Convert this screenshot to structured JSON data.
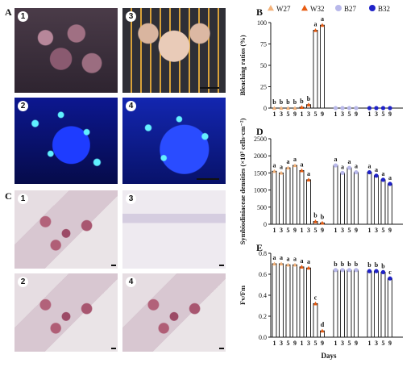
{
  "panels": {
    "A": "A",
    "B": "B",
    "C": "C",
    "D": "D",
    "E": "E"
  },
  "photo_badges": {
    "a1": "1",
    "a2": "2",
    "a3": "3",
    "a4": "4",
    "c1": "1",
    "c2": "2",
    "c3": "3",
    "c4": "4"
  },
  "legend": [
    {
      "label": "W27",
      "color": "#f3b27a",
      "marker": "triangle"
    },
    {
      "label": "W32",
      "color": "#e85c12",
      "marker": "triangle"
    },
    {
      "label": "B27",
      "color": "#b8b8ea",
      "marker": "circle"
    },
    {
      "label": "B32",
      "color": "#1f22c8",
      "marker": "circle"
    }
  ],
  "x_axis_title": "Days",
  "chart_data": [
    {
      "id": "B",
      "type": "bar",
      "ylabel": "Bleaching ratios (%)",
      "ylim": [
        0,
        100
      ],
      "yticks": [
        0,
        25,
        50,
        75,
        100
      ],
      "days": [
        "1",
        "3",
        "5",
        "9"
      ],
      "series": [
        {
          "name": "W27",
          "values": [
            0,
            0,
            0,
            0
          ],
          "letters": [
            "b",
            "b",
            "b",
            "b"
          ]
        },
        {
          "name": "W32",
          "values": [
            1,
            4,
            91,
            97
          ],
          "letters": [
            "b",
            "b",
            "a",
            "a"
          ]
        },
        {
          "name": "B27",
          "values": [
            0,
            0,
            0,
            0
          ],
          "letters": [
            "",
            "",
            "",
            ""
          ]
        },
        {
          "name": "B32",
          "values": [
            0,
            0,
            0,
            0
          ],
          "letters": [
            "",
            "",
            "",
            ""
          ]
        }
      ]
    },
    {
      "id": "D",
      "type": "bar",
      "ylabel": "Symbiodiniaceae densities (×10³ cells·cm⁻²)",
      "ylim": [
        0,
        2500
      ],
      "yticks": [
        0,
        500,
        1000,
        1500,
        2000,
        2500
      ],
      "days": [
        "1",
        "3",
        "5",
        "9"
      ],
      "series": [
        {
          "name": "W27",
          "values": [
            1550,
            1500,
            1650,
            1720
          ],
          "letters": [
            "a",
            "a",
            "a",
            "a"
          ]
        },
        {
          "name": "W32",
          "values": [
            1570,
            1300,
            80,
            40
          ],
          "letters": [
            "a",
            "a",
            "b",
            "b"
          ]
        },
        {
          "name": "B27",
          "values": [
            1720,
            1500,
            1650,
            1520
          ],
          "letters": [
            "a",
            "a",
            "a",
            "a"
          ]
        },
        {
          "name": "B32",
          "values": [
            1520,
            1420,
            1300,
            1180
          ],
          "letters": [
            "a",
            "a",
            "a",
            "a"
          ]
        }
      ]
    },
    {
      "id": "E",
      "type": "bar",
      "ylabel": "Fv/Fm",
      "ylim": [
        0,
        0.8
      ],
      "yticks": [
        0.0,
        0.2,
        0.4,
        0.6,
        0.8
      ],
      "days": [
        "1",
        "3",
        "5",
        "9"
      ],
      "series": [
        {
          "name": "W27",
          "values": [
            0.7,
            0.7,
            0.69,
            0.69
          ],
          "letters": [
            "a",
            "a",
            "a",
            "a"
          ]
        },
        {
          "name": "W32",
          "values": [
            0.67,
            0.66,
            0.32,
            0.06
          ],
          "letters": [
            "a",
            "a",
            "c",
            "d"
          ]
        },
        {
          "name": "B27",
          "values": [
            0.64,
            0.64,
            0.64,
            0.64
          ],
          "letters": [
            "b",
            "b",
            "b",
            "b"
          ]
        },
        {
          "name": "B32",
          "values": [
            0.63,
            0.63,
            0.62,
            0.56
          ],
          "letters": [
            "b",
            "b",
            "b",
            "c"
          ]
        }
      ]
    }
  ]
}
